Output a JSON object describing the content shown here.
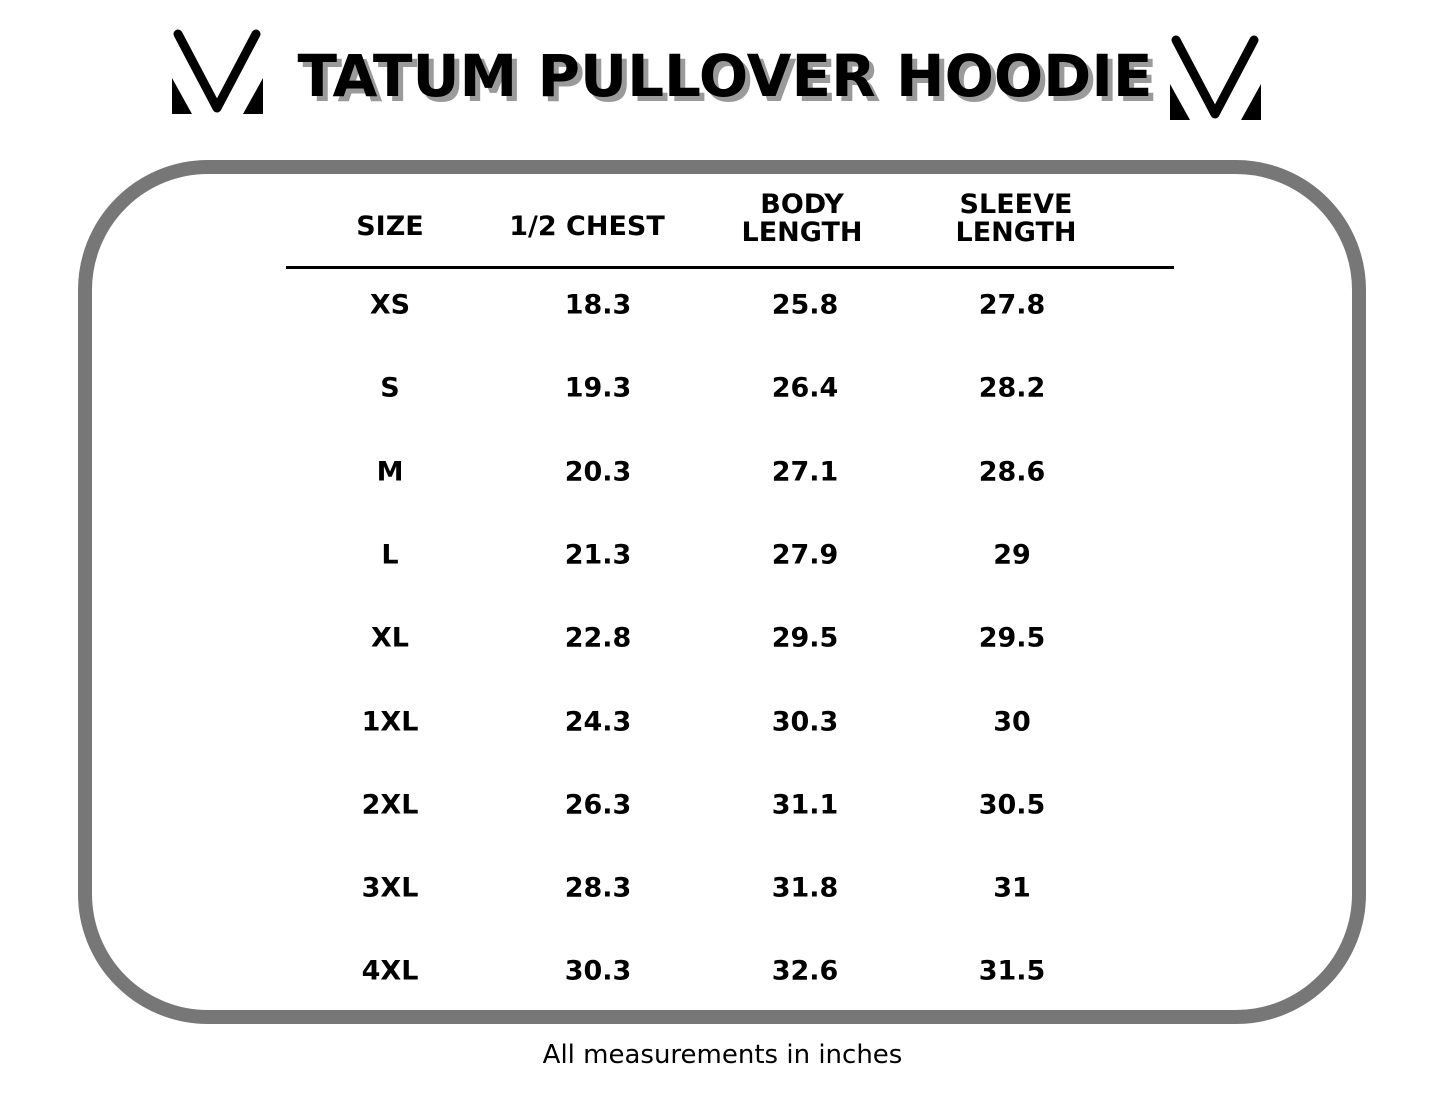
{
  "title": "TATUM PULLOVER HOODIE",
  "logo": {
    "icon": "v-monogram-logo"
  },
  "colors": {
    "frame": "#777777",
    "title_shadow": "#9a9a9a",
    "text": "#000000"
  },
  "table": {
    "headers": [
      {
        "line1": "SIZE",
        "line2": ""
      },
      {
        "line1": "1/2 CHEST",
        "line2": ""
      },
      {
        "line1": "BODY",
        "line2": "LENGTH"
      },
      {
        "line1": "SLEEVE",
        "line2": "LENGTH"
      }
    ],
    "rows": [
      [
        "XS",
        "18.3",
        "25.8",
        "27.8"
      ],
      [
        "S",
        "19.3",
        "26.4",
        "28.2"
      ],
      [
        "M",
        "20.3",
        "27.1",
        "28.6"
      ],
      [
        "L",
        "21.3",
        "27.9",
        "29"
      ],
      [
        "XL",
        "22.8",
        "29.5",
        "29.5"
      ],
      [
        "1XL",
        "24.3",
        "30.3",
        "30"
      ],
      [
        "2XL",
        "26.3",
        "31.1",
        "30.5"
      ],
      [
        "3XL",
        "28.3",
        "31.8",
        "31"
      ],
      [
        "4XL",
        "30.3",
        "32.6",
        "31.5"
      ]
    ]
  },
  "footer": "All measurements in inches"
}
